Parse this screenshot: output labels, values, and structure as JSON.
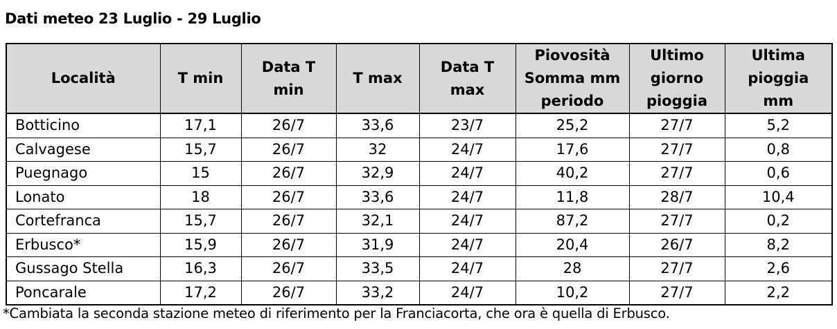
{
  "title": "Dati meteo 23 Luglio - 29 Luglio",
  "table": {
    "headers": [
      [
        "Località"
      ],
      [
        "T min"
      ],
      [
        "Data T",
        "min"
      ],
      [
        "T max"
      ],
      [
        "Data T",
        "max"
      ],
      [
        "Piovosità",
        "Somma mm",
        "periodo"
      ],
      [
        "Ultimo",
        "giorno",
        "pioggia"
      ],
      [
        "Ultima",
        "pioggia",
        "mm"
      ]
    ],
    "rows": [
      [
        "Botticino",
        "17,1",
        "26/7",
        "33,6",
        "23/7",
        "25,2",
        "27/7",
        "5,2"
      ],
      [
        "Calvagese",
        "15,7",
        "26/7",
        "32",
        "24/7",
        "17,6",
        "27/7",
        "0,8"
      ],
      [
        "Puegnago",
        "15",
        "26/7",
        "32,9",
        "24/7",
        "40,2",
        "27/7",
        "0,6"
      ],
      [
        "Lonato",
        "18",
        "26/7",
        "33,6",
        "24/7",
        "11,8",
        "28/7",
        "10,4"
      ],
      [
        "Cortefranca",
        "15,7",
        "26/7",
        "32,1",
        "24/7",
        "87,2",
        "27/7",
        "0,2"
      ],
      [
        "Erbusco*",
        "15,9",
        "26/7",
        "31,9",
        "24/7",
        "20,4",
        "26/7",
        "8,2"
      ],
      [
        "Gussago Stella",
        "16,3",
        "26/7",
        "33,5",
        "24/7",
        "28",
        "27/7",
        "2,6"
      ],
      [
        "Poncarale",
        "17,2",
        "26/7",
        "33,2",
        "24/7",
        "10,2",
        "27/7",
        "2,2"
      ]
    ]
  },
  "footnote": "*Cambiata la seconda stazione meteo di riferimento per la Franciacorta, che ora è quella di Erbusco.",
  "colors": {
    "header_background": "#d9d9d9",
    "border": "#000000",
    "text": "#000000"
  }
}
